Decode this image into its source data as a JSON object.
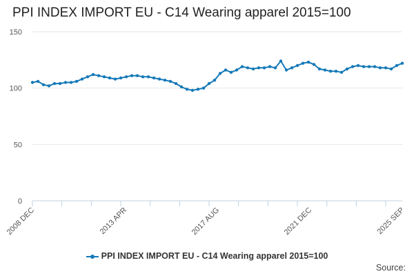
{
  "chart_data": {
    "type": "line",
    "title": "PPI INDEX IMPORT EU - C14 Wearing apparel 2015=100",
    "xlabel": "",
    "ylabel": "",
    "ylim": [
      0,
      150
    ],
    "y_ticks": [
      0,
      50,
      100,
      150
    ],
    "x_range": [
      "2008-12",
      "2025-09"
    ],
    "x_tick_labels": [
      "2008 DEC",
      "2013 APR",
      "2017 AUG",
      "2021 DEC",
      "2025 SEP"
    ],
    "grid": true,
    "legend_position": "bottom",
    "series": [
      {
        "name": "PPI INDEX IMPORT EU - C14 Wearing apparel 2015=100",
        "color": "#1479b8",
        "points": [
          [
            "2008-12",
            105
          ],
          [
            "2009-03",
            106
          ],
          [
            "2009-06",
            103
          ],
          [
            "2009-09",
            102
          ],
          [
            "2009-12",
            104
          ],
          [
            "2010-03",
            104
          ],
          [
            "2010-06",
            105
          ],
          [
            "2010-09",
            105
          ],
          [
            "2010-12",
            106
          ],
          [
            "2011-03",
            108
          ],
          [
            "2011-06",
            110
          ],
          [
            "2011-09",
            112
          ],
          [
            "2011-12",
            111
          ],
          [
            "2012-03",
            110
          ],
          [
            "2012-06",
            109
          ],
          [
            "2012-09",
            108
          ],
          [
            "2012-12",
            109
          ],
          [
            "2013-03",
            110
          ],
          [
            "2013-06",
            111
          ],
          [
            "2013-09",
            111
          ],
          [
            "2013-12",
            110
          ],
          [
            "2014-03",
            110
          ],
          [
            "2014-06",
            109
          ],
          [
            "2014-09",
            108
          ],
          [
            "2014-12",
            107
          ],
          [
            "2015-03",
            106
          ],
          [
            "2015-06",
            104
          ],
          [
            "2015-09",
            101
          ],
          [
            "2015-12",
            99
          ],
          [
            "2016-03",
            98
          ],
          [
            "2016-06",
            99
          ],
          [
            "2016-09",
            100
          ],
          [
            "2016-12",
            104
          ],
          [
            "2017-03",
            107
          ],
          [
            "2017-06",
            113
          ],
          [
            "2017-09",
            116
          ],
          [
            "2017-12",
            114
          ],
          [
            "2018-03",
            116
          ],
          [
            "2018-06",
            119
          ],
          [
            "2018-09",
            118
          ],
          [
            "2018-12",
            117
          ],
          [
            "2019-03",
            118
          ],
          [
            "2019-06",
            118
          ],
          [
            "2019-09",
            119
          ],
          [
            "2019-12",
            118
          ],
          [
            "2020-03",
            124
          ],
          [
            "2020-06",
            116
          ],
          [
            "2020-09",
            118
          ],
          [
            "2020-12",
            120
          ],
          [
            "2021-03",
            122
          ],
          [
            "2021-06",
            123
          ],
          [
            "2021-09",
            121
          ],
          [
            "2021-12",
            117
          ],
          [
            "2022-03",
            116
          ],
          [
            "2022-06",
            115
          ],
          [
            "2022-09",
            115
          ],
          [
            "2022-12",
            114
          ],
          [
            "2023-03",
            117
          ],
          [
            "2023-06",
            119
          ],
          [
            "2023-09",
            120
          ],
          [
            "2023-12",
            119
          ],
          [
            "2024-03",
            119
          ],
          [
            "2024-06",
            119
          ],
          [
            "2024-09",
            118
          ],
          [
            "2024-12",
            118
          ],
          [
            "2025-03",
            117
          ],
          [
            "2025-06",
            120
          ],
          [
            "2025-09",
            122
          ]
        ]
      }
    ]
  },
  "source_label": "Source:"
}
